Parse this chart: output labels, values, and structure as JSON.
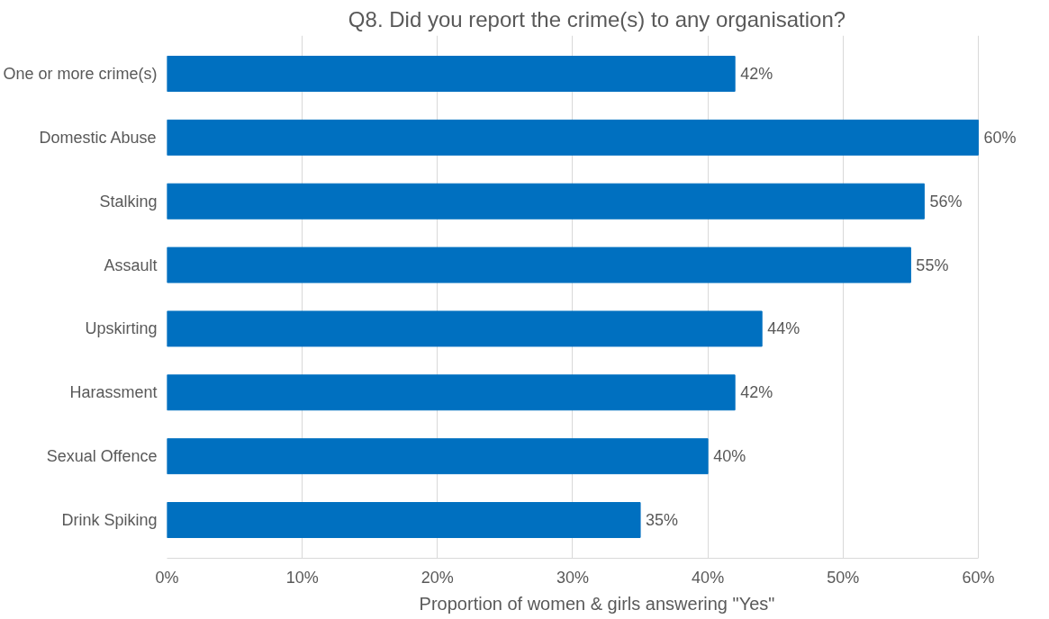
{
  "chart_data": {
    "type": "bar",
    "orientation": "horizontal",
    "title": "Q8. Did you report the crime(s) to any organisation?",
    "xlabel": "Proportion of women & girls answering \"Yes\"",
    "categories": [
      "One or more crime(s)",
      "Domestic Abuse",
      "Stalking",
      "Assault",
      "Upskirting",
      "Harassment",
      "Sexual Offence",
      "Drink Spiking"
    ],
    "values": [
      42,
      60,
      56,
      55,
      44,
      42,
      40,
      35
    ],
    "value_labels": [
      "42%",
      "60%",
      "56%",
      "55%",
      "44%",
      "42%",
      "40%",
      "35%"
    ],
    "color": "#0070c0",
    "xlim": [
      0,
      60
    ],
    "xticks": [
      {
        "value": 0,
        "label": "0%"
      },
      {
        "value": 10,
        "label": "10%"
      },
      {
        "value": 20,
        "label": "20%"
      },
      {
        "value": 30,
        "label": "30%"
      },
      {
        "value": 40,
        "label": "40%"
      },
      {
        "value": 50,
        "label": "50%"
      },
      {
        "value": 60,
        "label": "60%"
      }
    ],
    "grid": "x"
  }
}
